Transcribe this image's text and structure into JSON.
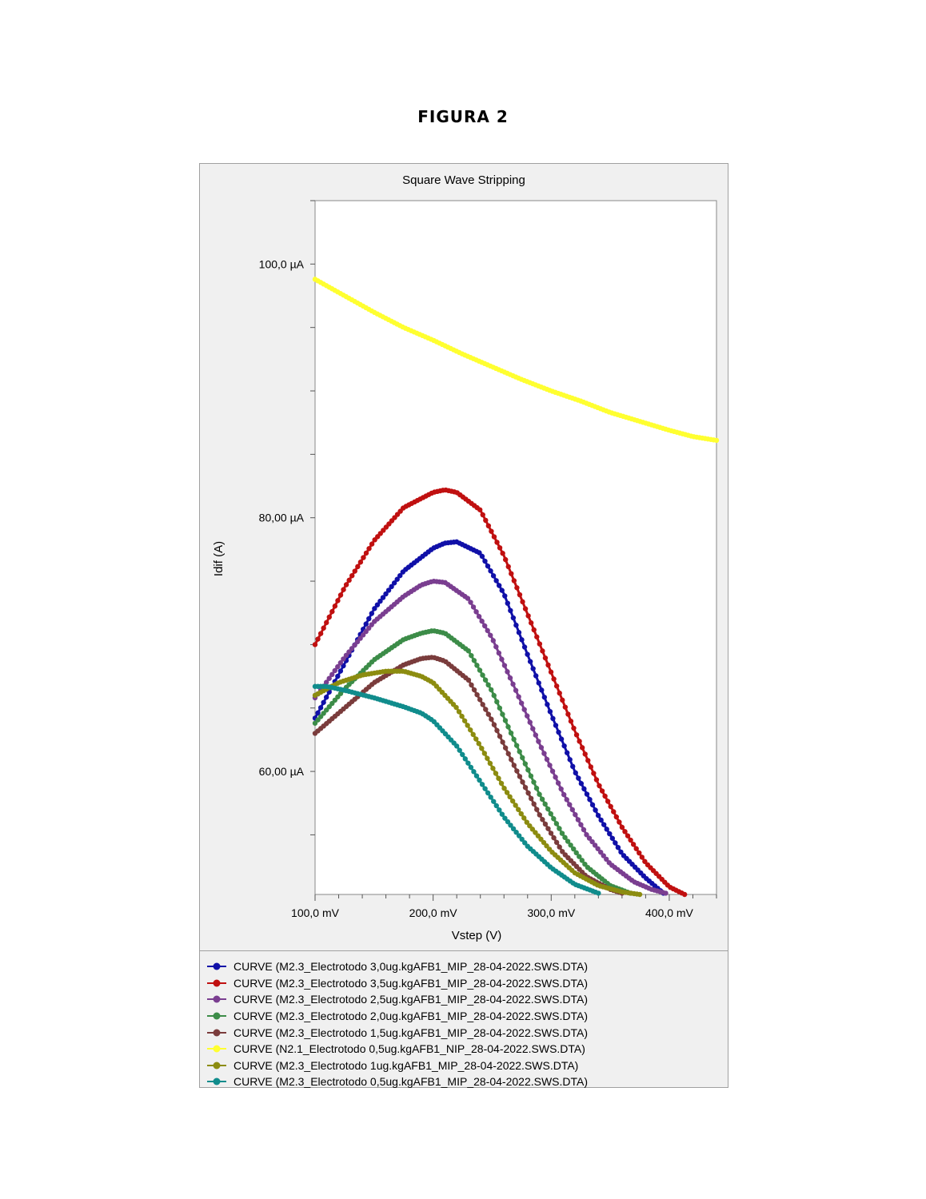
{
  "page": {
    "heading": "FIGURA 2"
  },
  "chart_data": {
    "type": "scatter",
    "title": "Square Wave Stripping",
    "xlabel": "Vstep (V)",
    "ylabel": "Idif (A)",
    "xlim": [
      0.1,
      0.44
    ],
    "ylim": [
      50.3,
      105
    ],
    "x_ticks": [
      {
        "value": 0.1,
        "label": "100,0 mV"
      },
      {
        "value": 0.2,
        "label": "200,0 mV"
      },
      {
        "value": 0.3,
        "label": "300,0 mV"
      },
      {
        "value": 0.4,
        "label": "400,0 mV"
      }
    ],
    "y_ticks": [
      {
        "value": 60,
        "label": "60,00 µA"
      },
      {
        "value": 80,
        "label": "80,00 µA"
      },
      {
        "value": 100,
        "label": "100,0 µA"
      }
    ],
    "legend_position": "bottom",
    "grid": false,
    "series": [
      {
        "name": "CURVE (M2.3_Electrotodo 3,0ug.kgAFB1_MIP_28-04-2022.SWS.DTA)",
        "color": "#1010a8",
        "x": [
          0.1,
          0.125,
          0.15,
          0.175,
          0.2,
          0.21,
          0.22,
          0.24,
          0.26,
          0.28,
          0.3,
          0.32,
          0.34,
          0.36,
          0.38,
          0.395
        ],
        "y": [
          64.2,
          68.5,
          72.8,
          75.8,
          77.6,
          78.0,
          78.1,
          77.2,
          74.0,
          69.2,
          64.5,
          60.0,
          56.5,
          53.5,
          51.6,
          50.4
        ]
      },
      {
        "name": "CURVE (M2.3_Electrotodo 3,5ug.kgAFB1_MIP_28-04-2022.SWS.DTA)",
        "color": "#c01010",
        "x": [
          0.1,
          0.125,
          0.15,
          0.175,
          0.2,
          0.21,
          0.22,
          0.24,
          0.26,
          0.28,
          0.3,
          0.32,
          0.34,
          0.36,
          0.38,
          0.4,
          0.413
        ],
        "y": [
          70.0,
          74.5,
          78.2,
          80.8,
          82.0,
          82.2,
          82.0,
          80.6,
          77.0,
          72.4,
          67.8,
          63.2,
          59.0,
          55.6,
          52.8,
          50.9,
          50.3
        ]
      },
      {
        "name": "CURVE (M2.3_Electrotodo 2,5ug.kgAFB1_MIP_28-04-2022.SWS.DTA)",
        "color": "#7a3e90",
        "x": [
          0.1,
          0.125,
          0.15,
          0.175,
          0.19,
          0.2,
          0.21,
          0.23,
          0.25,
          0.27,
          0.29,
          0.31,
          0.33,
          0.35,
          0.37,
          0.385,
          0.397
        ],
        "y": [
          65.8,
          69.0,
          71.8,
          73.8,
          74.7,
          75.0,
          74.9,
          73.6,
          70.5,
          66.4,
          62.2,
          58.3,
          55.0,
          52.7,
          51.3,
          50.7,
          50.4
        ]
      },
      {
        "name": "CURVE (M2.3_Electrotodo 2,0ug.kgAFB1_MIP_28-04-2022.SWS.DTA)",
        "color": "#3c8c48",
        "x": [
          0.1,
          0.125,
          0.15,
          0.175,
          0.19,
          0.2,
          0.21,
          0.23,
          0.25,
          0.27,
          0.29,
          0.31,
          0.33,
          0.35,
          0.367
        ],
        "y": [
          63.8,
          66.5,
          68.8,
          70.4,
          70.9,
          71.1,
          70.9,
          69.5,
          66.3,
          62.2,
          58.2,
          55.0,
          52.5,
          51.0,
          50.4
        ]
      },
      {
        "name": "CURVE (M2.3_Electrotodo 1,5ug.kgAFB1_MIP_28-04-2022.SWS.DTA)",
        "color": "#7a3c3c",
        "x": [
          0.1,
          0.125,
          0.15,
          0.175,
          0.19,
          0.2,
          0.21,
          0.23,
          0.25,
          0.27,
          0.29,
          0.31,
          0.33,
          0.35,
          0.36
        ],
        "y": [
          63.0,
          65.0,
          67.0,
          68.4,
          68.9,
          69.0,
          68.7,
          67.2,
          64.0,
          60.2,
          56.6,
          53.6,
          51.7,
          50.7,
          50.4
        ]
      },
      {
        "name": "CURVE (N2.1_Electrotodo 0,5ug.kgAFB1_NIP_28-04-2022.SWS.DTA)",
        "color": "#ffff30",
        "x": [
          0.1,
          0.125,
          0.15,
          0.175,
          0.2,
          0.225,
          0.25,
          0.275,
          0.3,
          0.325,
          0.35,
          0.375,
          0.4,
          0.42,
          0.44
        ],
        "y": [
          98.8,
          97.5,
          96.2,
          95.0,
          94.0,
          92.9,
          91.9,
          90.9,
          90.0,
          89.2,
          88.3,
          87.6,
          86.9,
          86.4,
          86.1
        ]
      },
      {
        "name": "CURVE (M2.3_Electrotodo 1ug.kgAFB1_MIP_28-04-2022.SWS.DTA)",
        "color": "#8c8c10",
        "x": [
          0.1,
          0.12,
          0.14,
          0.16,
          0.175,
          0.19,
          0.2,
          0.22,
          0.24,
          0.26,
          0.28,
          0.3,
          0.32,
          0.34,
          0.36,
          0.375
        ],
        "y": [
          66.0,
          67.0,
          67.6,
          67.9,
          67.9,
          67.5,
          67.0,
          65.0,
          62.0,
          58.7,
          55.9,
          53.7,
          52.0,
          51.0,
          50.5,
          50.3
        ]
      },
      {
        "name": "CURVE (M2.3_Electrotodo 0,5ug.kgAFB1_MIP_28-04-2022.SWS.DTA)",
        "color": "#108c8c",
        "x": [
          0.1,
          0.11,
          0.125,
          0.15,
          0.175,
          0.19,
          0.2,
          0.22,
          0.24,
          0.26,
          0.28,
          0.3,
          0.32,
          0.34
        ],
        "y": [
          66.7,
          66.7,
          66.4,
          65.8,
          65.1,
          64.6,
          64.0,
          62.0,
          59.2,
          56.4,
          54.1,
          52.4,
          51.1,
          50.4
        ]
      }
    ]
  }
}
